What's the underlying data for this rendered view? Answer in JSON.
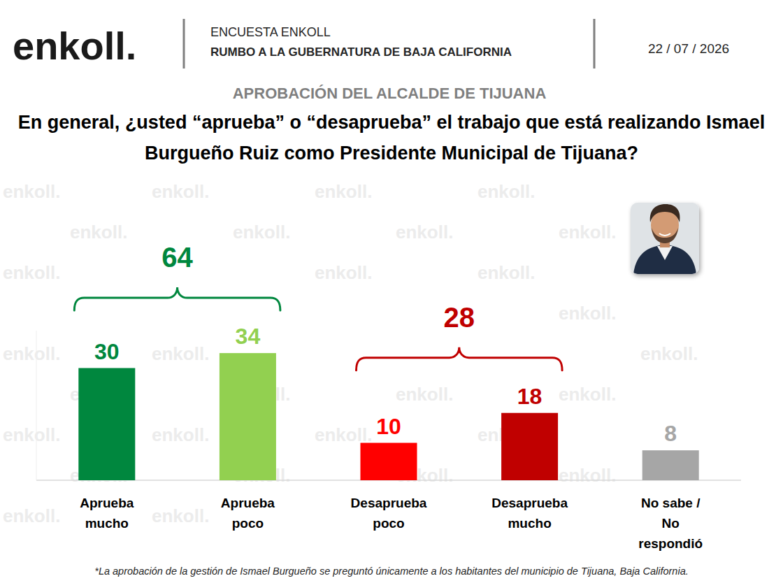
{
  "header": {
    "logo": "enkoll.",
    "survey": "ENCUESTA ENKOLL",
    "subtitle": "RUMBO A LA GUBERNATURA DE BAJA CALIFORNIA",
    "date": "22 / 07 / 2026"
  },
  "watermark": "enkoll.",
  "chart_data": {
    "type": "bar",
    "title": "APROBACIÓN DEL ALCALDE DE TIJUANA",
    "subtitle": "En general, ¿usted “aprueba” o “desaprueba” el trabajo que está realizando Ismael Burgueño Ruiz como Presidente Municipal de Tijuana?",
    "categories": [
      "Aprueba mucho",
      "Aprueba poco",
      "Desaprueba poco",
      "Desaprueba mucho",
      "No sabe / No respondió"
    ],
    "values": [
      30,
      34,
      10,
      18,
      8
    ],
    "colors": [
      "#00873e",
      "#92d050",
      "#ff0000",
      "#c00000",
      "#a6a6a6"
    ],
    "ylim": [
      0,
      40
    ],
    "grid": false,
    "data_labels": true,
    "tick_labels": "x",
    "groups": [
      {
        "categories": [
          "Aprueba mucho",
          "Aprueba poco"
        ],
        "value": 64,
        "color": "#00873e"
      },
      {
        "categories": [
          "Desaprueba poco",
          "Desaprueba mucho"
        ],
        "value": 28,
        "color": "#c00000"
      }
    ],
    "footnote": "*La aprobación de la gestión de Ismael Burgueño se preguntó únicamente a los habitantes del municipio de Tijuana, Baja California."
  }
}
